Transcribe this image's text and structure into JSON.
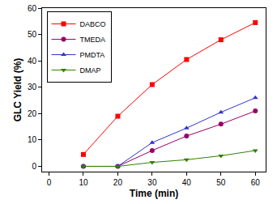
{
  "chart_data": {
    "type": "line",
    "x_label": "Time (min)",
    "y_label": "GLC Yield (%)",
    "x": [
      10,
      20,
      30,
      40,
      50,
      60
    ],
    "series": [
      {
        "name": "DABCO",
        "color": "#ff0000",
        "marker": "square",
        "values": [
          4.5,
          19,
          31,
          40.5,
          48,
          54.5
        ]
      },
      {
        "name": "TMEDA",
        "color": "#990066",
        "marker": "circle",
        "values": [
          0,
          0,
          6,
          11.5,
          16,
          21
        ]
      },
      {
        "name": "PMDTA",
        "color": "#3333cc",
        "marker": "triangle-up",
        "values": [
          0,
          0,
          9,
          14.5,
          20.5,
          26
        ]
      },
      {
        "name": "DMAP",
        "color": "#338000",
        "marker": "triangle-down",
        "values": [
          0,
          0,
          1.5,
          2.5,
          4,
          6
        ]
      }
    ],
    "xlim": [
      -2,
      63
    ],
    "xticks": [
      0,
      10,
      20,
      30,
      40,
      50,
      60
    ],
    "ylim": [
      -2,
      60
    ],
    "yticks": [
      0,
      10,
      20,
      30,
      40,
      50,
      60
    ],
    "grid": false,
    "legend": "upper left"
  }
}
